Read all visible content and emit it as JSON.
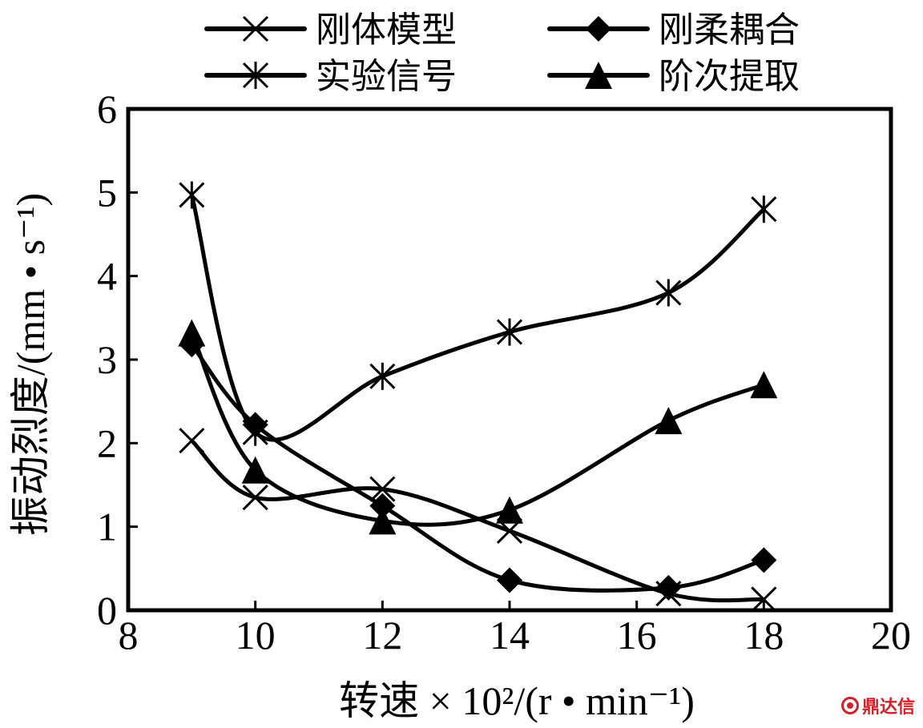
{
  "chart_data": {
    "type": "line",
    "xlabel": "转速 × 10²/(r • min⁻¹)",
    "ylabel": "振动烈度/(mm • s⁻¹)",
    "xlim": [
      8,
      20
    ],
    "ylim": [
      0,
      6
    ],
    "xticks": [
      8,
      10,
      12,
      14,
      16,
      18,
      20
    ],
    "yticks": [
      0,
      1,
      2,
      3,
      4,
      5,
      6
    ],
    "grid": false,
    "legend_position": "top",
    "series": [
      {
        "name": "刚体模型",
        "marker": "x",
        "x": [
          9,
          10,
          12,
          14,
          16.5,
          18
        ],
        "y": [
          2.03,
          1.35,
          1.45,
          0.95,
          0.2,
          0.13
        ]
      },
      {
        "name": "刚柔耦合",
        "marker": "diamond",
        "x": [
          9,
          10,
          12,
          14,
          16.5,
          18
        ],
        "y": [
          3.18,
          2.22,
          1.25,
          0.36,
          0.27,
          0.6
        ]
      },
      {
        "name": "实验信号",
        "marker": "asterisk",
        "x": [
          9,
          10,
          12,
          14,
          16.5,
          18
        ],
        "y": [
          4.97,
          2.13,
          2.8,
          3.33,
          3.8,
          4.8
        ]
      },
      {
        "name": "阶次提取",
        "marker": "triangle",
        "x": [
          9,
          10,
          12,
          14,
          16.5,
          18
        ],
        "y": [
          3.32,
          1.68,
          1.07,
          1.2,
          2.27,
          2.7
        ]
      }
    ]
  },
  "watermark": "鼎达信"
}
